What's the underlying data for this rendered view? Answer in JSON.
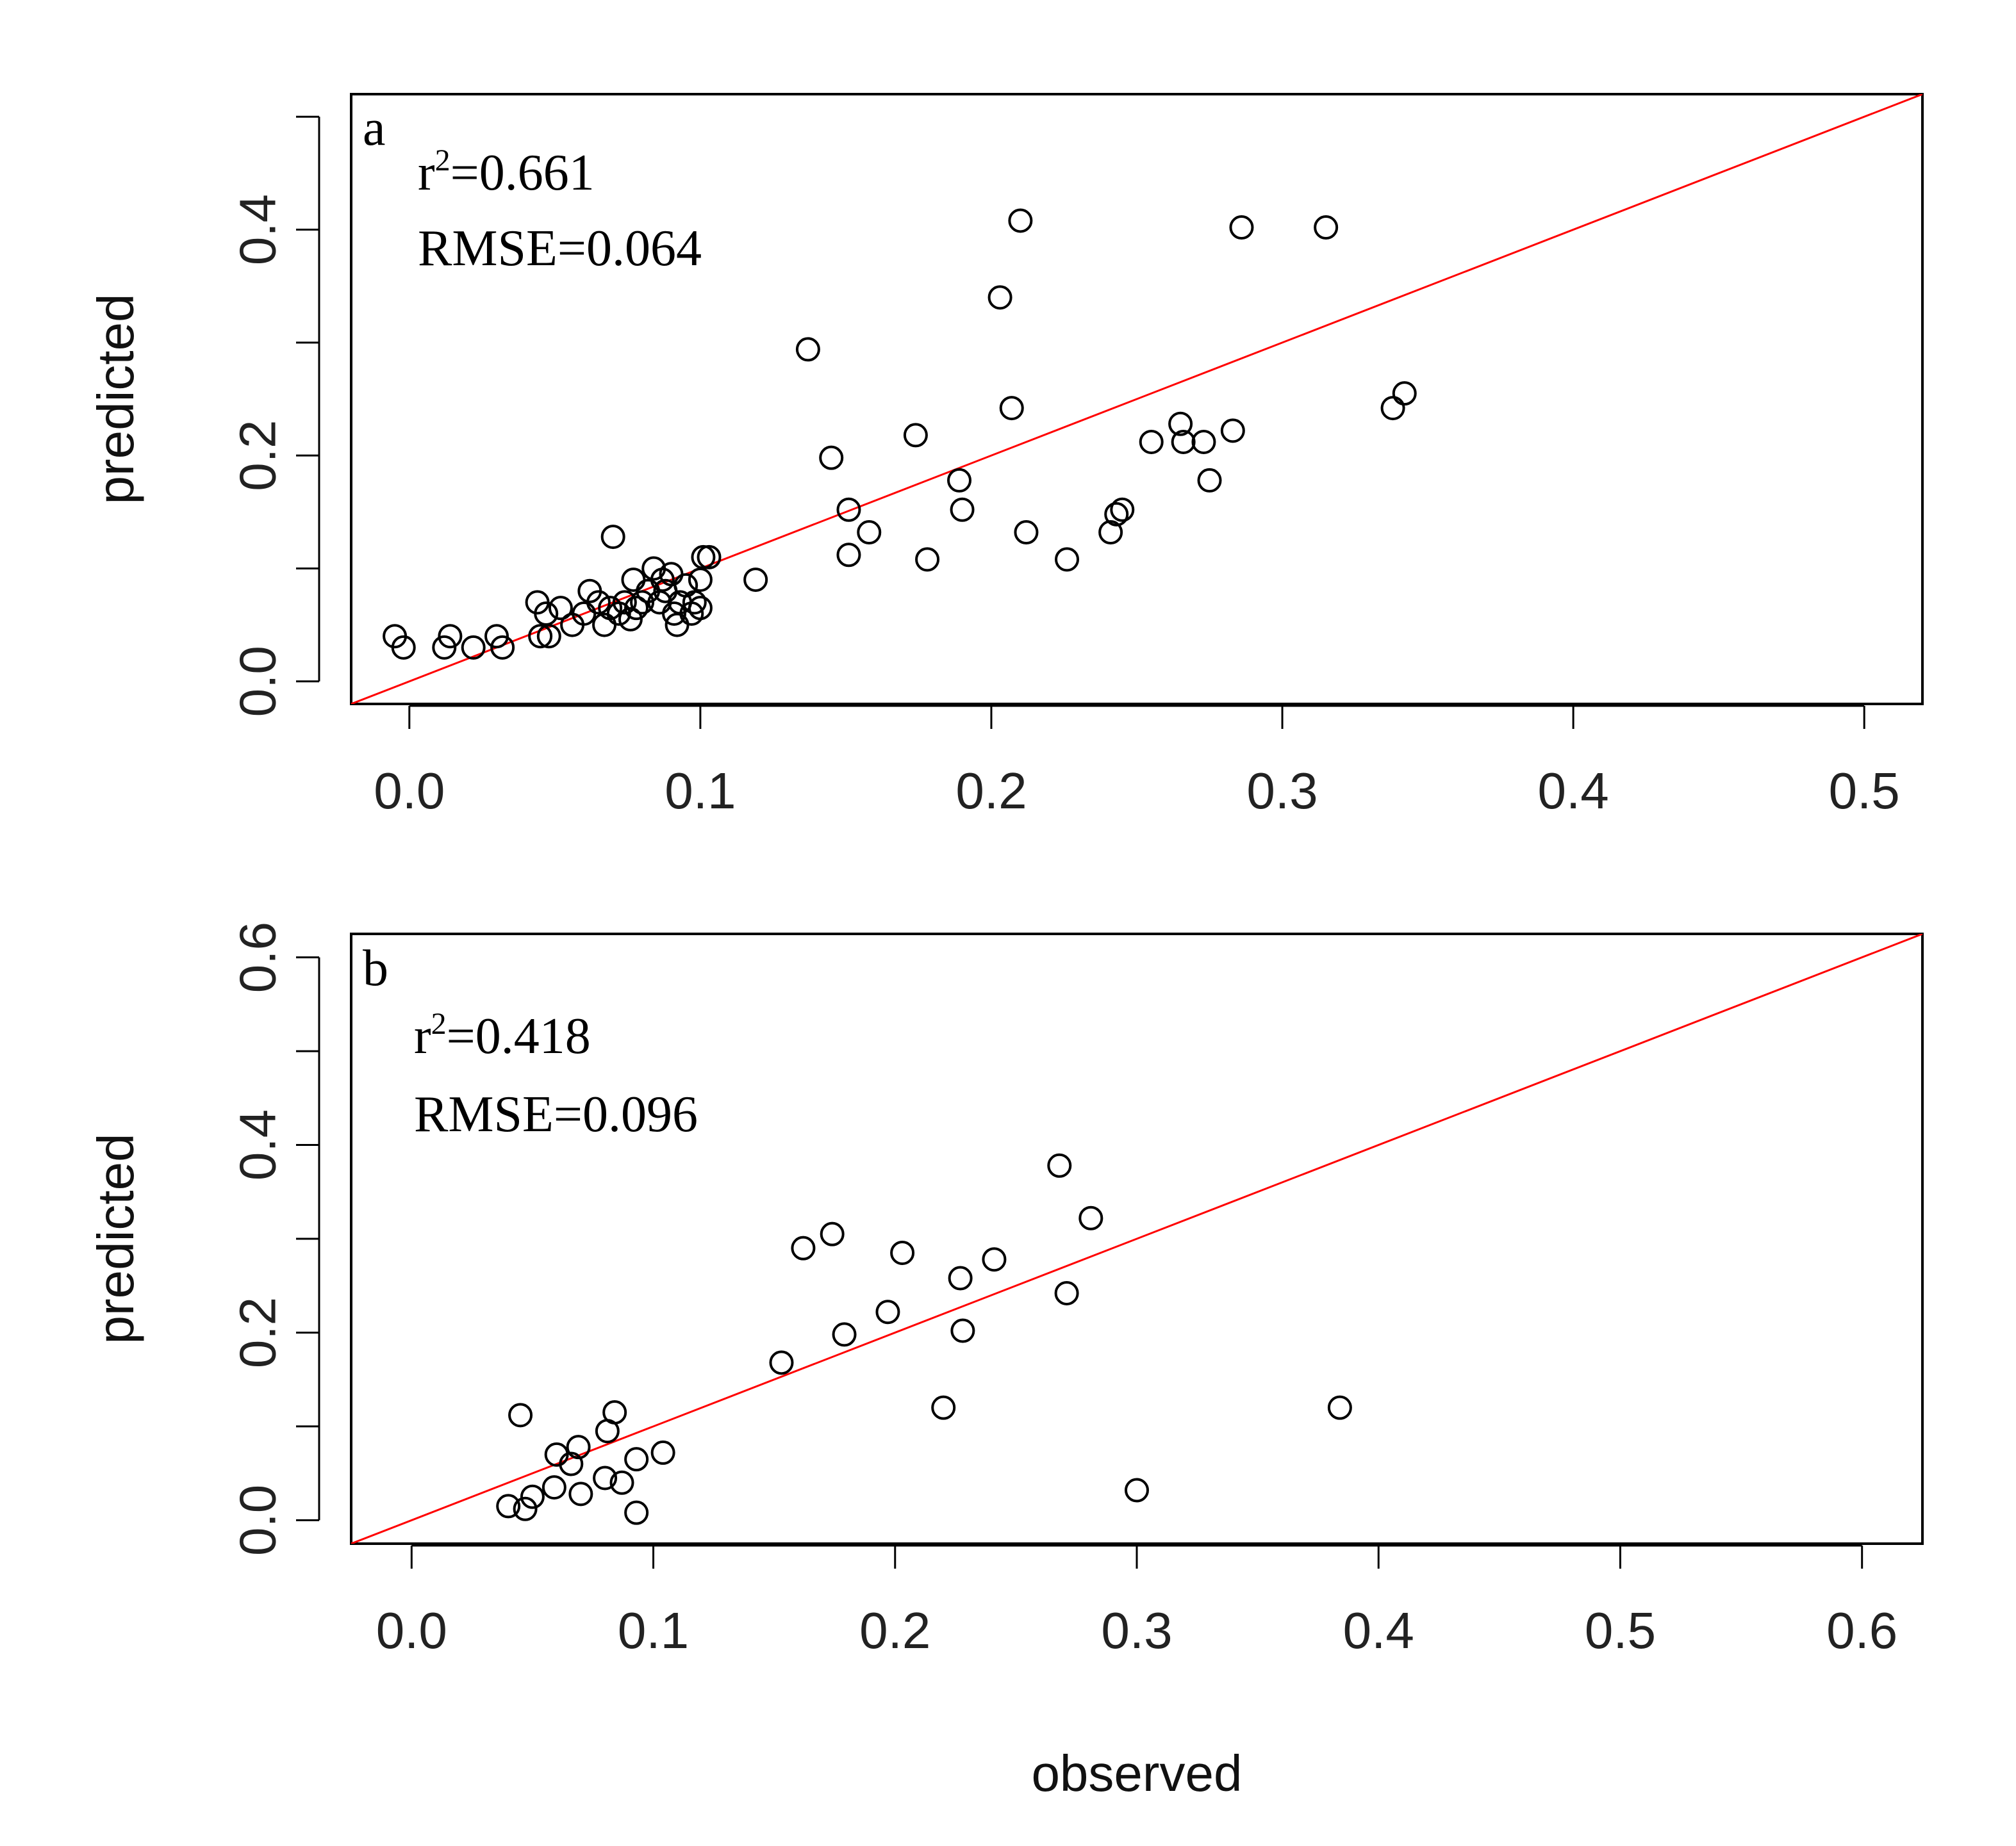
{
  "chart_data": [
    {
      "type": "scatter",
      "panel_label": "a",
      "xlabel": "",
      "ylabel": "predicted",
      "xlim": [
        -0.02,
        0.52
      ],
      "ylim": [
        -0.02,
        0.52
      ],
      "x_ticks": [
        0.0,
        0.1,
        0.2,
        0.3,
        0.4,
        0.5
      ],
      "x_tick_labels": [
        "0.0",
        "0.1",
        "0.2",
        "0.3",
        "0.4",
        "0.5"
      ],
      "y_ticks": [
        0.0,
        0.1,
        0.2,
        0.3,
        0.4,
        0.5
      ],
      "y_tick_labels": [
        "0.0",
        "",
        "0.2",
        "",
        "0.4",
        ""
      ],
      "stats": {
        "r2_prefix": "r",
        "r2_sup": "2",
        "r2_value": "=0.661",
        "rmse": "RMSE=0.064"
      },
      "reference_line": {
        "type": "1:1",
        "color": "#ff0000"
      },
      "points": [
        {
          "x": -0.005,
          "y": 0.04
        },
        {
          "x": -0.002,
          "y": 0.03
        },
        {
          "x": 0.012,
          "y": 0.03
        },
        {
          "x": 0.014,
          "y": 0.04
        },
        {
          "x": 0.022,
          "y": 0.03
        },
        {
          "x": 0.03,
          "y": 0.04
        },
        {
          "x": 0.032,
          "y": 0.03
        },
        {
          "x": 0.044,
          "y": 0.07
        },
        {
          "x": 0.045,
          "y": 0.04
        },
        {
          "x": 0.047,
          "y": 0.06
        },
        {
          "x": 0.048,
          "y": 0.04
        },
        {
          "x": 0.052,
          "y": 0.065
        },
        {
          "x": 0.056,
          "y": 0.05
        },
        {
          "x": 0.06,
          "y": 0.06
        },
        {
          "x": 0.062,
          "y": 0.08
        },
        {
          "x": 0.065,
          "y": 0.07
        },
        {
          "x": 0.067,
          "y": 0.05
        },
        {
          "x": 0.069,
          "y": 0.065
        },
        {
          "x": 0.07,
          "y": 0.128
        },
        {
          "x": 0.072,
          "y": 0.06
        },
        {
          "x": 0.074,
          "y": 0.07
        },
        {
          "x": 0.076,
          "y": 0.055
        },
        {
          "x": 0.077,
          "y": 0.09
        },
        {
          "x": 0.078,
          "y": 0.065
        },
        {
          "x": 0.08,
          "y": 0.07
        },
        {
          "x": 0.082,
          "y": 0.08
        },
        {
          "x": 0.084,
          "y": 0.1
        },
        {
          "x": 0.086,
          "y": 0.07
        },
        {
          "x": 0.087,
          "y": 0.09
        },
        {
          "x": 0.088,
          "y": 0.08
        },
        {
          "x": 0.09,
          "y": 0.095
        },
        {
          "x": 0.091,
          "y": 0.06
        },
        {
          "x": 0.092,
          "y": 0.05
        },
        {
          "x": 0.093,
          "y": 0.07
        },
        {
          "x": 0.095,
          "y": 0.085
        },
        {
          "x": 0.097,
          "y": 0.06
        },
        {
          "x": 0.098,
          "y": 0.07
        },
        {
          "x": 0.1,
          "y": 0.065
        },
        {
          "x": 0.1,
          "y": 0.09
        },
        {
          "x": 0.101,
          "y": 0.11
        },
        {
          "x": 0.103,
          "y": 0.11
        },
        {
          "x": 0.119,
          "y": 0.09
        },
        {
          "x": 0.137,
          "y": 0.294
        },
        {
          "x": 0.145,
          "y": 0.198
        },
        {
          "x": 0.151,
          "y": 0.152
        },
        {
          "x": 0.151,
          "y": 0.112
        },
        {
          "x": 0.158,
          "y": 0.132
        },
        {
          "x": 0.174,
          "y": 0.218
        },
        {
          "x": 0.178,
          "y": 0.108
        },
        {
          "x": 0.189,
          "y": 0.178
        },
        {
          "x": 0.19,
          "y": 0.152
        },
        {
          "x": 0.203,
          "y": 0.34
        },
        {
          "x": 0.207,
          "y": 0.242
        },
        {
          "x": 0.21,
          "y": 0.408
        },
        {
          "x": 0.212,
          "y": 0.132
        },
        {
          "x": 0.226,
          "y": 0.108
        },
        {
          "x": 0.241,
          "y": 0.132
        },
        {
          "x": 0.243,
          "y": 0.148
        },
        {
          "x": 0.245,
          "y": 0.152
        },
        {
          "x": 0.255,
          "y": 0.212
        },
        {
          "x": 0.265,
          "y": 0.228
        },
        {
          "x": 0.266,
          "y": 0.212
        },
        {
          "x": 0.273,
          "y": 0.212
        },
        {
          "x": 0.275,
          "y": 0.178
        },
        {
          "x": 0.283,
          "y": 0.222
        },
        {
          "x": 0.286,
          "y": 0.402
        },
        {
          "x": 0.315,
          "y": 0.402
        },
        {
          "x": 0.338,
          "y": 0.242
        },
        {
          "x": 0.342,
          "y": 0.255
        }
      ]
    },
    {
      "type": "scatter",
      "panel_label": "b",
      "xlabel": "observed",
      "ylabel": "predicted",
      "xlim": [
        -0.025,
        0.625
      ],
      "ylim": [
        -0.025,
        0.625
      ],
      "x_ticks": [
        0.0,
        0.1,
        0.2,
        0.3,
        0.4,
        0.5,
        0.6
      ],
      "x_tick_labels": [
        "0.0",
        "0.1",
        "0.2",
        "0.3",
        "0.4",
        "0.5",
        "0.6"
      ],
      "y_ticks": [
        0.0,
        0.1,
        0.2,
        0.3,
        0.4,
        0.5,
        0.6
      ],
      "y_tick_labels": [
        "0.0",
        "",
        "0.2",
        "",
        "0.4",
        "",
        "0.6"
      ],
      "stats": {
        "r2_prefix": "r",
        "r2_sup": "2",
        "r2_value": "=0.418",
        "rmse": "RMSE=0.096"
      },
      "reference_line": {
        "type": "1:1",
        "color": "#ff0000"
      },
      "points": [
        {
          "x": 0.04,
          "y": 0.015
        },
        {
          "x": 0.045,
          "y": 0.112
        },
        {
          "x": 0.047,
          "y": 0.012
        },
        {
          "x": 0.05,
          "y": 0.025
        },
        {
          "x": 0.059,
          "y": 0.035
        },
        {
          "x": 0.06,
          "y": 0.07
        },
        {
          "x": 0.066,
          "y": 0.06
        },
        {
          "x": 0.069,
          "y": 0.078
        },
        {
          "x": 0.07,
          "y": 0.028
        },
        {
          "x": 0.08,
          "y": 0.045
        },
        {
          "x": 0.081,
          "y": 0.095
        },
        {
          "x": 0.084,
          "y": 0.115
        },
        {
          "x": 0.087,
          "y": 0.04
        },
        {
          "x": 0.093,
          "y": 0.065
        },
        {
          "x": 0.093,
          "y": 0.008
        },
        {
          "x": 0.104,
          "y": 0.072
        },
        {
          "x": 0.153,
          "y": 0.168
        },
        {
          "x": 0.162,
          "y": 0.29
        },
        {
          "x": 0.174,
          "y": 0.305
        },
        {
          "x": 0.179,
          "y": 0.198
        },
        {
          "x": 0.197,
          "y": 0.222
        },
        {
          "x": 0.203,
          "y": 0.285
        },
        {
          "x": 0.22,
          "y": 0.12
        },
        {
          "x": 0.227,
          "y": 0.258
        },
        {
          "x": 0.228,
          "y": 0.202
        },
        {
          "x": 0.241,
          "y": 0.278
        },
        {
          "x": 0.268,
          "y": 0.378
        },
        {
          "x": 0.271,
          "y": 0.242
        },
        {
          "x": 0.281,
          "y": 0.322
        },
        {
          "x": 0.3,
          "y": 0.032
        },
        {
          "x": 0.384,
          "y": 0.12
        }
      ]
    }
  ]
}
